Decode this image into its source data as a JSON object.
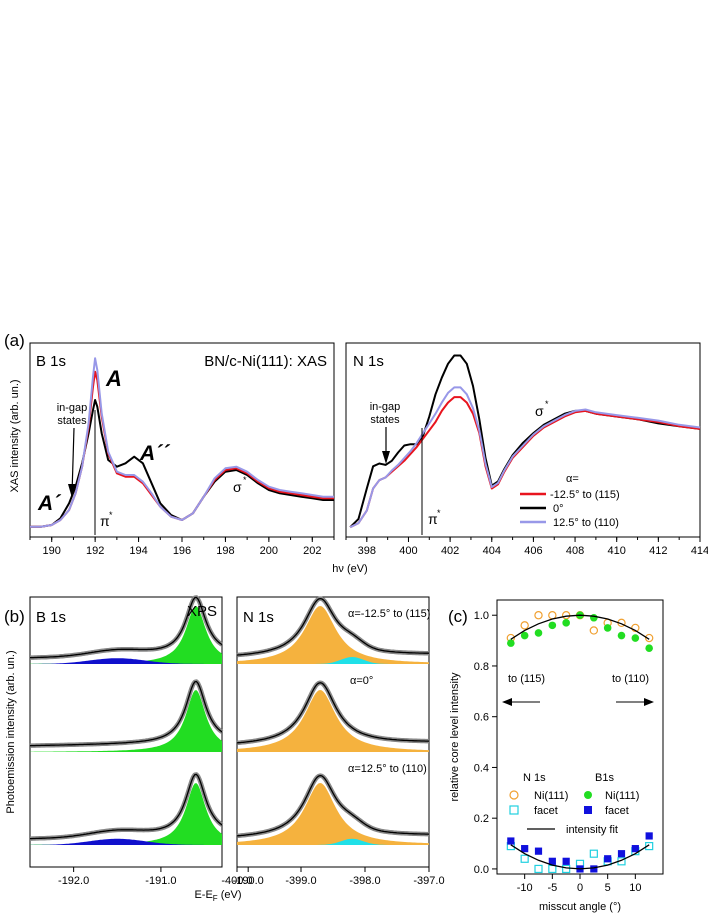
{
  "panel_labels": {
    "a": "(a)",
    "b": "(b)",
    "c": "(c)"
  },
  "chart_data": [
    {
      "id": "xas-b1s",
      "type": "line",
      "title": "BN/c-Ni(111): XAS",
      "corner_label": "B 1s",
      "ylabel": "XAS intensity (arb. un.)",
      "xlim": [
        189,
        203
      ],
      "xticks": [
        190,
        192,
        194,
        196,
        198,
        200,
        202
      ],
      "annotations": [
        "A",
        "A´",
        "A´´",
        "in-gap",
        "states",
        "π",
        "*",
        "σ",
        "*"
      ],
      "series": [
        {
          "name": "-12.5° to (115)",
          "color": "#e8141e",
          "x": [
            189,
            189.5,
            190,
            190.4,
            190.8,
            191.1,
            191.4,
            191.7,
            191.9,
            192.0,
            192.1,
            192.3,
            192.6,
            193.0,
            193.4,
            193.8,
            194.2,
            194.6,
            195.0,
            195.5,
            196.0,
            196.5,
            197.0,
            197.5,
            198.0,
            198.5,
            199.0,
            199.5,
            200.0,
            200.5,
            201.0,
            201.5,
            202.0,
            202.5,
            203.0
          ],
          "y": [
            0.02,
            0.02,
            0.03,
            0.06,
            0.12,
            0.22,
            0.38,
            0.62,
            0.86,
            0.95,
            0.9,
            0.68,
            0.46,
            0.34,
            0.32,
            0.32,
            0.28,
            0.21,
            0.14,
            0.08,
            0.06,
            0.1,
            0.2,
            0.3,
            0.36,
            0.37,
            0.34,
            0.29,
            0.25,
            0.23,
            0.22,
            0.21,
            0.2,
            0.19,
            0.19
          ]
        },
        {
          "name": "0°",
          "color": "#000000",
          "x": [
            189,
            189.5,
            190,
            190.4,
            190.8,
            191.1,
            191.4,
            191.7,
            191.9,
            192.0,
            192.1,
            192.3,
            192.6,
            193.0,
            193.4,
            193.8,
            194.2,
            194.6,
            195.0,
            195.5,
            196.0,
            196.5,
            197.0,
            197.5,
            198.0,
            198.5,
            199.0,
            199.5,
            200.0,
            200.5,
            201.0,
            201.5,
            202.0,
            202.5,
            203.0
          ],
          "y": [
            0.02,
            0.02,
            0.03,
            0.07,
            0.16,
            0.26,
            0.4,
            0.58,
            0.72,
            0.78,
            0.74,
            0.58,
            0.42,
            0.38,
            0.4,
            0.44,
            0.4,
            0.28,
            0.16,
            0.09,
            0.06,
            0.1,
            0.2,
            0.29,
            0.35,
            0.36,
            0.33,
            0.28,
            0.24,
            0.22,
            0.21,
            0.2,
            0.19,
            0.18,
            0.18
          ]
        },
        {
          "name": "12.5° to (110)",
          "color": "#9898e8",
          "x": [
            189,
            189.5,
            190,
            190.4,
            190.8,
            191.1,
            191.4,
            191.7,
            191.9,
            192.0,
            192.1,
            192.3,
            192.6,
            193.0,
            193.4,
            193.8,
            194.2,
            194.6,
            195.0,
            195.5,
            196.0,
            196.5,
            197.0,
            197.5,
            198.0,
            198.5,
            199.0,
            199.5,
            200.0,
            200.5,
            201.0,
            201.5,
            202.0,
            202.5,
            203.0
          ],
          "y": [
            0.02,
            0.02,
            0.03,
            0.06,
            0.12,
            0.22,
            0.38,
            0.64,
            0.92,
            1.03,
            0.96,
            0.7,
            0.47,
            0.35,
            0.33,
            0.33,
            0.29,
            0.22,
            0.14,
            0.08,
            0.06,
            0.1,
            0.2,
            0.31,
            0.37,
            0.38,
            0.35,
            0.3,
            0.26,
            0.24,
            0.23,
            0.22,
            0.21,
            0.2,
            0.2
          ]
        }
      ]
    },
    {
      "id": "xas-n1s",
      "type": "line",
      "corner_label": "N 1s",
      "xlabel": "hν (eV)",
      "xlim": [
        397,
        414
      ],
      "xticks": [
        398,
        400,
        402,
        404,
        406,
        408,
        410,
        412,
        414
      ],
      "annotations": [
        "in-gap",
        "states",
        "π",
        "*",
        "σ",
        "*"
      ],
      "legend_title": "α=",
      "legend_position": "center-right",
      "series": [
        {
          "name": "-12.5° to (115)",
          "color": "#e8141e",
          "x": [
            397.2,
            397.6,
            398.0,
            398.3,
            398.6,
            398.9,
            399.2,
            399.5,
            399.8,
            400.1,
            400.4,
            400.7,
            401.0,
            401.3,
            401.6,
            401.9,
            402.2,
            402.5,
            402.8,
            403.1,
            403.4,
            403.7,
            404.0,
            404.3,
            404.6,
            405.0,
            405.5,
            406.0,
            406.5,
            407.0,
            407.5,
            408.0,
            408.5,
            409.0,
            410.0,
            411.0,
            412.0,
            413.0,
            414.0
          ],
          "y": [
            0.02,
            0.05,
            0.14,
            0.3,
            0.36,
            0.38,
            0.42,
            0.46,
            0.5,
            0.55,
            0.6,
            0.66,
            0.72,
            0.78,
            0.86,
            0.92,
            0.96,
            0.96,
            0.92,
            0.84,
            0.7,
            0.46,
            0.3,
            0.33,
            0.42,
            0.52,
            0.6,
            0.68,
            0.74,
            0.78,
            0.82,
            0.85,
            0.86,
            0.84,
            0.82,
            0.8,
            0.78,
            0.75,
            0.73
          ]
        },
        {
          "name": "0°",
          "color": "#000000",
          "x": [
            397.2,
            397.6,
            398.0,
            398.3,
            398.6,
            398.9,
            399.2,
            399.5,
            399.8,
            400.1,
            400.4,
            400.7,
            401.0,
            401.3,
            401.6,
            401.9,
            402.2,
            402.5,
            402.8,
            403.1,
            403.4,
            403.7,
            404.0,
            404.3,
            404.6,
            405.0,
            405.5,
            406.0,
            406.5,
            407.0,
            407.5,
            408.0,
            408.5,
            409.0,
            410.0,
            411.0,
            412.0,
            413.0,
            414.0
          ],
          "y": [
            0.02,
            0.08,
            0.3,
            0.46,
            0.48,
            0.47,
            0.5,
            0.56,
            0.61,
            0.62,
            0.62,
            0.68,
            0.82,
            0.98,
            1.1,
            1.2,
            1.26,
            1.26,
            1.2,
            1.04,
            0.8,
            0.52,
            0.32,
            0.35,
            0.44,
            0.54,
            0.63,
            0.7,
            0.76,
            0.8,
            0.84,
            0.86,
            0.86,
            0.84,
            0.82,
            0.8,
            0.77,
            0.75,
            0.73
          ]
        },
        {
          "name": "12.5° to (110)",
          "color": "#9898e8",
          "x": [
            397.2,
            397.6,
            398.0,
            398.3,
            398.6,
            398.9,
            399.2,
            399.5,
            399.8,
            400.1,
            400.4,
            400.7,
            401.0,
            401.3,
            401.6,
            401.9,
            402.2,
            402.5,
            402.8,
            403.1,
            403.4,
            403.7,
            404.0,
            404.3,
            404.6,
            405.0,
            405.5,
            406.0,
            406.5,
            407.0,
            407.5,
            408.0,
            408.5,
            409.0,
            410.0,
            411.0,
            412.0,
            413.0,
            414.0
          ],
          "y": [
            0.02,
            0.05,
            0.14,
            0.3,
            0.36,
            0.38,
            0.43,
            0.47,
            0.52,
            0.57,
            0.63,
            0.7,
            0.77,
            0.84,
            0.92,
            0.99,
            1.03,
            1.03,
            0.98,
            0.88,
            0.72,
            0.48,
            0.31,
            0.34,
            0.43,
            0.53,
            0.61,
            0.69,
            0.75,
            0.79,
            0.83,
            0.86,
            0.87,
            0.85,
            0.83,
            0.81,
            0.79,
            0.76,
            0.74
          ]
        }
      ]
    },
    {
      "id": "xps-b1s",
      "type": "area",
      "corner_label": "B 1s",
      "title": "XPS",
      "ylabel": "Photoemission intensity (arb. un.)",
      "xlim": [
        -192.5,
        -190.3
      ],
      "xticks": [
        -192.0,
        -191.0,
        -190.0
      ],
      "xtick_labels": [
        "-192.0",
        "-191.0",
        "-190.0"
      ],
      "components": [
        {
          "name": "Ni(111)",
          "color": "#22dd22",
          "center_eV": -190.6
        },
        {
          "name": "facet",
          "color": "#1010cc",
          "center_eV": -191.5
        }
      ],
      "rows": [
        {
          "angle": "-12.5°",
          "main_amplitude": 1.0,
          "facet_amplitude": 0.1
        },
        {
          "angle": "0°",
          "main_amplitude": 1.0,
          "facet_amplitude": 0.0
        },
        {
          "angle": "12.5°",
          "main_amplitude": 1.0,
          "facet_amplitude": 0.1
        }
      ]
    },
    {
      "id": "xps-n1s",
      "type": "area",
      "corner_label": "N 1s",
      "xlabel": "E-E",
      "xlabel_subscript": "F",
      "xlabel_suffix": " (eV)",
      "xlim": [
        -400.0,
        -397.0
      ],
      "xticks": [
        -400.0,
        -399.0,
        -398.0,
        -397.0
      ],
      "xtick_labels": [
        "-400.0",
        "-399.0",
        "-398.0",
        "-397.0"
      ],
      "components": [
        {
          "name": "Ni(111)",
          "color": "#f5b23e",
          "center_eV": -398.7
        },
        {
          "name": "facet",
          "color": "#20e0e8",
          "center_eV": -398.2
        }
      ],
      "rows": [
        {
          "angle": "α=-12.5° to (115)",
          "main_amplitude": 1.0,
          "facet_amplitude": 0.12
        },
        {
          "angle": "α=0°",
          "main_amplitude": 1.0,
          "facet_amplitude": 0.0
        },
        {
          "angle": "α=12.5° to (110)",
          "main_amplitude": 1.0,
          "facet_amplitude": 0.1
        }
      ]
    },
    {
      "id": "relative-intensity",
      "type": "scatter",
      "xlabel": "misscut angle (°)",
      "ylabel": "relative core level intensity",
      "xlim": [
        -15,
        15
      ],
      "ylim": [
        -0.02,
        1.06
      ],
      "xticks": [
        -10,
        -5,
        0,
        5,
        10
      ],
      "yticks": [
        0.0,
        0.2,
        0.4,
        0.6,
        0.8,
        1.0
      ],
      "ytick_labels": [
        "0.0",
        "0.2",
        "0.4",
        "0.6",
        "0.8",
        "1.0"
      ],
      "direction_labels": [
        "to (115)",
        "to (110)"
      ],
      "legend": {
        "n_header": "N 1s",
        "b_header": "B1s",
        "ni_label": "Ni(111)",
        "facet_label": "facet",
        "fit_label": "intensity fit"
      },
      "series": [
        {
          "name": "N 1s Ni(111)",
          "marker": "open-circle",
          "color": "#f0a030",
          "x": [
            -12.5,
            -10,
            -7.5,
            -5,
            -2.5,
            0,
            2.5,
            5,
            7.5,
            10,
            12.5
          ],
          "y": [
            0.91,
            0.96,
            1.0,
            1.0,
            1.0,
            1.0,
            0.94,
            0.97,
            0.97,
            0.95,
            0.91
          ]
        },
        {
          "name": "N 1s facet",
          "marker": "open-square",
          "color": "#20d0e0",
          "x": [
            -12.5,
            -10,
            -7.5,
            -5,
            -2.5,
            0,
            2.5,
            5,
            7.5,
            10,
            12.5
          ],
          "y": [
            0.09,
            0.04,
            0.0,
            0.0,
            0.0,
            0.02,
            0.06,
            0.03,
            0.03,
            0.07,
            0.09
          ]
        },
        {
          "name": "B1s Ni(111)",
          "marker": "filled-circle",
          "color": "#22dd22",
          "x": [
            -12.5,
            -10,
            -7.5,
            -5,
            -2.5,
            0,
            2.5,
            5,
            7.5,
            10,
            12.5
          ],
          "y": [
            0.89,
            0.92,
            0.93,
            0.96,
            0.97,
            1.0,
            0.99,
            0.95,
            0.92,
            0.91,
            0.87
          ]
        },
        {
          "name": "B1s facet",
          "marker": "filled-square",
          "color": "#1010dd",
          "x": [
            -12.5,
            -10,
            -7.5,
            -5,
            -2.5,
            0,
            2.5,
            5,
            7.5,
            10,
            12.5
          ],
          "y": [
            0.11,
            0.08,
            0.07,
            0.03,
            0.03,
            0.0,
            0.0,
            0.04,
            0.06,
            0.08,
            0.13
          ]
        },
        {
          "name": "intensity fit (upper)",
          "marker": "line",
          "color": "#000000",
          "x": [
            -12.5,
            -10,
            -7.5,
            -5,
            -2.5,
            0,
            2.5,
            5,
            7.5,
            10,
            12.5
          ],
          "y": [
            0.905,
            0.94,
            0.966,
            0.985,
            0.996,
            1.0,
            0.996,
            0.985,
            0.966,
            0.94,
            0.905
          ]
        },
        {
          "name": "intensity fit (lower)",
          "marker": "line",
          "color": "#000000",
          "x": [
            -12.5,
            -10,
            -7.5,
            -5,
            -2.5,
            0,
            2.5,
            5,
            7.5,
            10,
            12.5
          ],
          "y": [
            0.095,
            0.06,
            0.034,
            0.015,
            0.004,
            0.0,
            0.004,
            0.015,
            0.034,
            0.06,
            0.095
          ]
        }
      ]
    }
  ]
}
